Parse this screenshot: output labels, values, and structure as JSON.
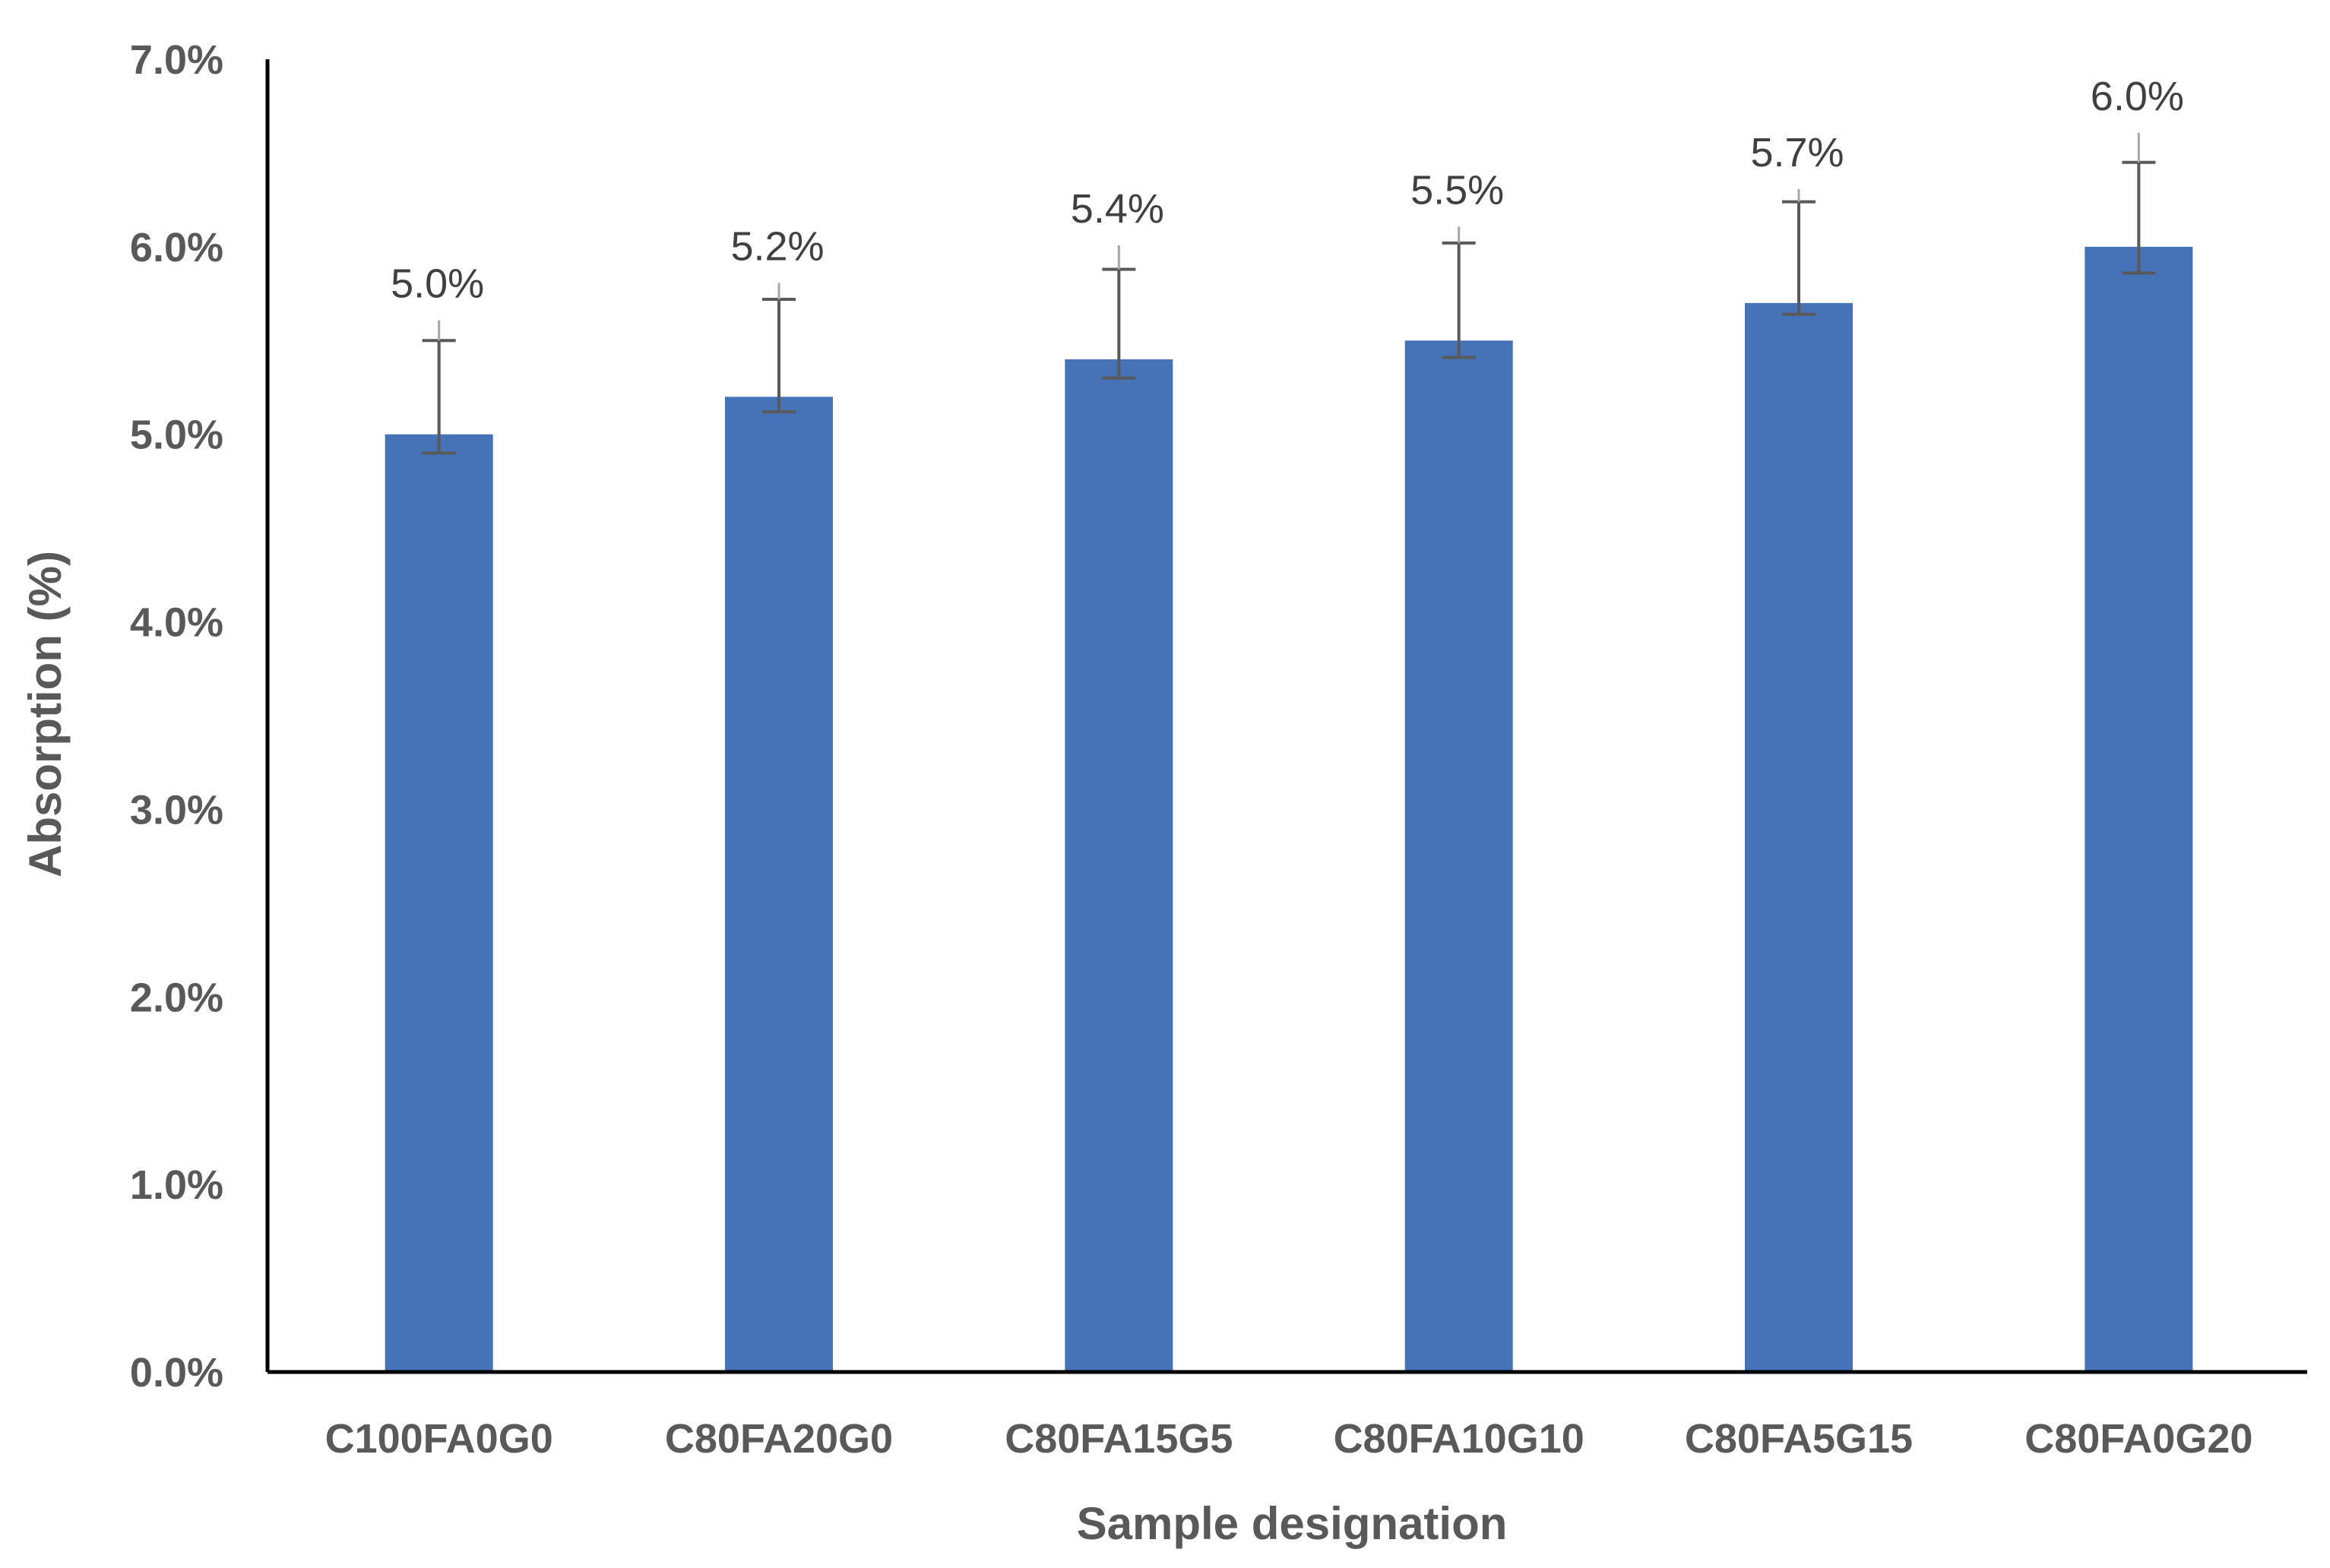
{
  "chart_data": {
    "type": "bar",
    "categories": [
      "C100FA0G0",
      "C80FA20G0",
      "C80FA15G5",
      "C80FA10G10",
      "C80FA5G15",
      "C80FA0G20"
    ],
    "series": [
      {
        "values": [
          5.0,
          5.2,
          5.4,
          5.5,
          5.7,
          6.0
        ],
        "error_low": [
          4.9,
          5.12,
          5.3,
          5.41,
          5.64,
          5.86
        ],
        "error_high": [
          5.5,
          5.72,
          5.88,
          6.02,
          6.24,
          6.45
        ],
        "color": "#4672B8"
      }
    ],
    "data_labels": [
      "5.0%",
      "5.2%",
      "5.4%",
      "5.5%",
      "5.7%",
      "6.0%"
    ],
    "title": "",
    "xlabel": "Sample designation",
    "ylabel": "Absorption (%)",
    "ylim": [
      0,
      7
    ],
    "yticks": [
      0,
      1,
      2,
      3,
      4,
      5,
      6,
      7
    ],
    "ytick_labels": [
      "0.0%",
      "1.0%",
      "2.0%",
      "3.0%",
      "4.0%",
      "5.0%",
      "6.0%",
      "7.0%"
    ],
    "grid": false,
    "legend": "none"
  },
  "colors": {
    "bar": "#4672B8",
    "axis": "#000000",
    "error_bar": "#595959",
    "text": "#595959"
  }
}
